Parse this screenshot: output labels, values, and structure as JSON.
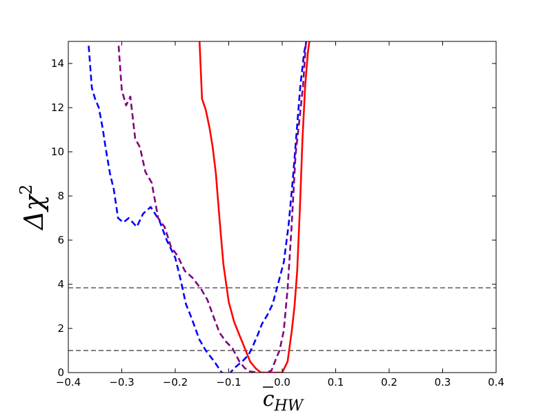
{
  "chart_data": {
    "type": "line",
    "xlabel": {
      "main": "c",
      "sub": "HW"
    },
    "ylabel": {
      "main": "Δχ",
      "sup": "2"
    },
    "xlim": [
      -0.4,
      0.4
    ],
    "ylim": [
      0,
      15
    ],
    "x_ticks": [
      -0.4,
      -0.3,
      -0.2,
      -0.1,
      0.0,
      0.1,
      0.2,
      0.3,
      0.4
    ],
    "x_tick_labels": [
      "−0.4",
      "−0.3",
      "−0.2",
      "−0.1",
      "0.0",
      "0.1",
      "0.2",
      "0.3",
      "0.4"
    ],
    "y_ticks": [
      0,
      2,
      4,
      6,
      8,
      10,
      12,
      14
    ],
    "y_tick_labels": [
      "0",
      "2",
      "4",
      "6",
      "8",
      "10",
      "12",
      "14"
    ],
    "grid": false,
    "reference_lines": [
      {
        "y": 3.84,
        "color": "#808080",
        "style": "dashed"
      },
      {
        "y": 1.0,
        "color": "#808080",
        "style": "dashed"
      }
    ],
    "series": [
      {
        "color": "#0000ff",
        "style": "dashed",
        "x": [
          -0.362,
          -0.356,
          -0.35,
          -0.343,
          -0.336,
          -0.329,
          -0.322,
          -0.315,
          -0.307,
          -0.297,
          -0.287,
          -0.272,
          -0.26,
          -0.246,
          -0.23,
          -0.216,
          -0.2,
          -0.19,
          -0.18,
          -0.17,
          -0.155,
          -0.143,
          -0.127,
          -0.113,
          -0.1,
          -0.09,
          -0.075,
          -0.063,
          -0.055,
          -0.046,
          -0.038,
          -0.028,
          -0.018,
          -0.008,
          0.003,
          0.012,
          0.02,
          0.027,
          0.034,
          0.041,
          0.047
        ],
        "y": [
          14.8,
          12.9,
          12.4,
          12.0,
          11.1,
          10.0,
          9.0,
          8.3,
          7.0,
          6.8,
          7.0,
          6.6,
          7.2,
          7.5,
          6.9,
          6.0,
          5.2,
          4.2,
          3.1,
          2.5,
          1.5,
          1.0,
          0.5,
          0.0,
          -0.1,
          0.2,
          0.5,
          0.8,
          1.2,
          1.7,
          2.2,
          2.6,
          3.1,
          4.0,
          5.0,
          6.7,
          8.8,
          10.9,
          13.0,
          14.5,
          15.2
        ]
      },
      {
        "color": "#800080",
        "style": "dashed",
        "x": [
          -0.306,
          -0.3,
          -0.292,
          -0.284,
          -0.275,
          -0.266,
          -0.256,
          -0.244,
          -0.232,
          -0.22,
          -0.208,
          -0.196,
          -0.182,
          -0.168,
          -0.152,
          -0.14,
          -0.128,
          -0.117,
          -0.105,
          -0.093,
          -0.08,
          -0.07,
          -0.06,
          -0.045,
          -0.035,
          -0.028,
          -0.02,
          -0.012,
          -0.005,
          0.003,
          0.01,
          0.017,
          0.025,
          0.032,
          0.039,
          0.045
        ],
        "y": [
          14.8,
          12.8,
          12.1,
          12.5,
          10.6,
          10.2,
          9.1,
          8.6,
          7.0,
          6.6,
          5.7,
          5.3,
          4.6,
          4.3,
          3.8,
          3.3,
          2.5,
          1.8,
          1.4,
          1.1,
          0.5,
          0.2,
          0.05,
          0.0,
          0.0,
          0.0,
          0.1,
          0.6,
          1.0,
          1.9,
          3.8,
          6.4,
          9.9,
          11.4,
          13.0,
          15.2
        ]
      },
      {
        "color": "#ff0000",
        "style": "solid",
        "x": [
          -0.155,
          -0.15,
          -0.143,
          -0.136,
          -0.13,
          -0.124,
          -0.117,
          -0.11,
          -0.1,
          -0.09,
          -0.08,
          -0.07,
          -0.06,
          -0.05,
          -0.04,
          -0.03,
          -0.02,
          -0.01,
          0.0,
          0.01,
          0.018,
          0.023,
          0.028,
          0.033,
          0.038,
          0.043,
          0.048,
          0.052
        ],
        "y": [
          15.2,
          12.4,
          11.9,
          11.1,
          10.2,
          9.0,
          6.9,
          4.9,
          3.2,
          2.3,
          1.7,
          1.1,
          0.5,
          0.2,
          0.0,
          0.0,
          0.0,
          0.0,
          0.0,
          0.5,
          1.9,
          3.0,
          4.6,
          7.4,
          10.6,
          13.0,
          14.5,
          15.2
        ]
      }
    ]
  }
}
